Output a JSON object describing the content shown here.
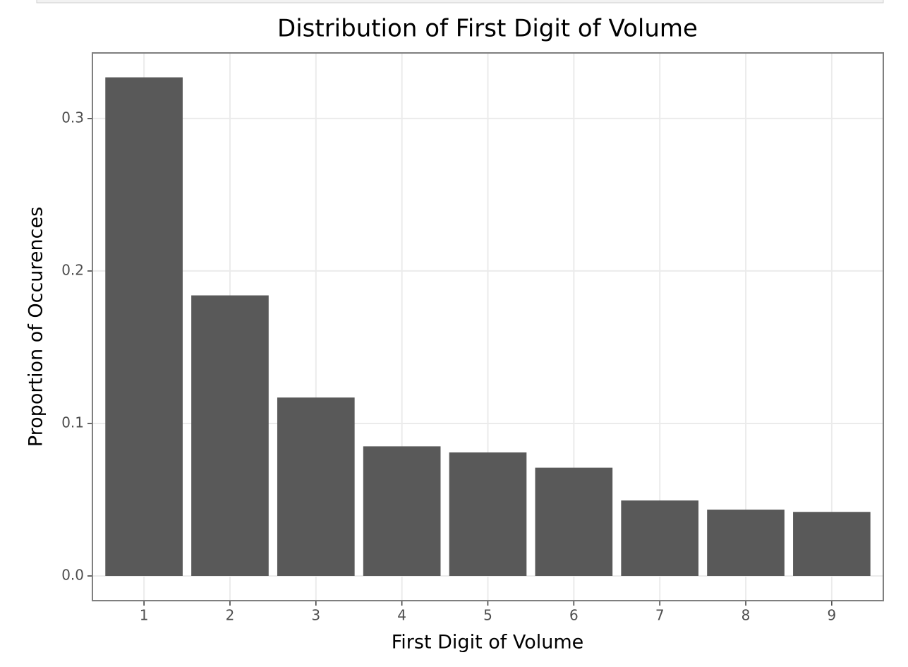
{
  "chart_data": {
    "type": "bar",
    "title": "Distribution of First Digit of Volume",
    "x_label": "First Digit of Volume",
    "y_label": "Proportion of Occurences",
    "categories": [
      "1",
      "2",
      "3",
      "4",
      "5",
      "6",
      "7",
      "8",
      "9"
    ],
    "values": [
      0.327,
      0.184,
      0.117,
      0.085,
      0.081,
      0.071,
      0.0495,
      0.0435,
      0.042
    ],
    "color": "#595959",
    "ylim": [
      -0.0162,
      0.343
    ],
    "yticks": [
      {
        "value": 0,
        "label": "0.0"
      },
      0.1,
      0.2,
      0.3
    ],
    "grid": true
  }
}
